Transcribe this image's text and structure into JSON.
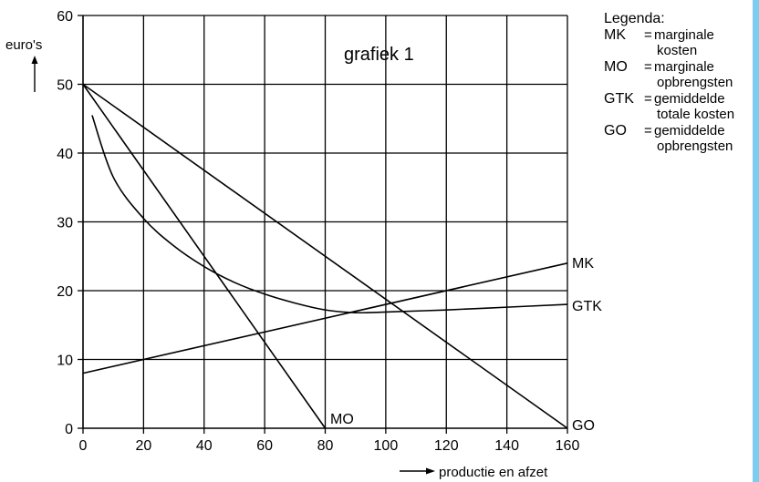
{
  "colors": {
    "ink": "#000000",
    "edge_strip": "#7ecdf1"
  },
  "chart_data": {
    "type": "line",
    "title": "grafiek 1",
    "ylabel": "euro's",
    "xlabel": "productie en afzet",
    "xlim": [
      0,
      160
    ],
    "ylim": [
      0,
      60
    ],
    "xticks": [
      0,
      20,
      40,
      60,
      80,
      100,
      120,
      140,
      160
    ],
    "yticks": [
      0,
      10,
      20,
      30,
      40,
      50,
      60
    ],
    "grid": true,
    "series": [
      {
        "name": "MK",
        "curve": "line",
        "x": [
          0,
          160
        ],
        "y": [
          8,
          24
        ]
      },
      {
        "name": "MO",
        "curve": "line",
        "x": [
          0,
          80
        ],
        "y": [
          50,
          0
        ]
      },
      {
        "name": "GO",
        "curve": "line",
        "x": [
          0,
          160
        ],
        "y": [
          50,
          0
        ]
      },
      {
        "name": "GTK",
        "curve": "smooth",
        "x": [
          3,
          10,
          20,
          30,
          40,
          50,
          60,
          70,
          80,
          90,
          100,
          120,
          140,
          160
        ],
        "y": [
          45.5,
          36.5,
          30.5,
          26.5,
          23.5,
          21.2,
          19.5,
          18.2,
          17.2,
          16.8,
          16.9,
          17.2,
          17.6,
          18
        ]
      }
    ]
  },
  "legend": {
    "heading": "Legenda:",
    "items": [
      {
        "abbr": "MK",
        "desc": "marginale",
        "cont": "kosten"
      },
      {
        "abbr": "MO",
        "desc": "marginale",
        "cont": "opbrengsten"
      },
      {
        "abbr": "GTK",
        "desc": "gemiddelde",
        "cont": "totale kosten"
      },
      {
        "abbr": "GO",
        "desc": "gemiddelde",
        "cont": "opbrengsten"
      }
    ],
    "eq": "="
  }
}
